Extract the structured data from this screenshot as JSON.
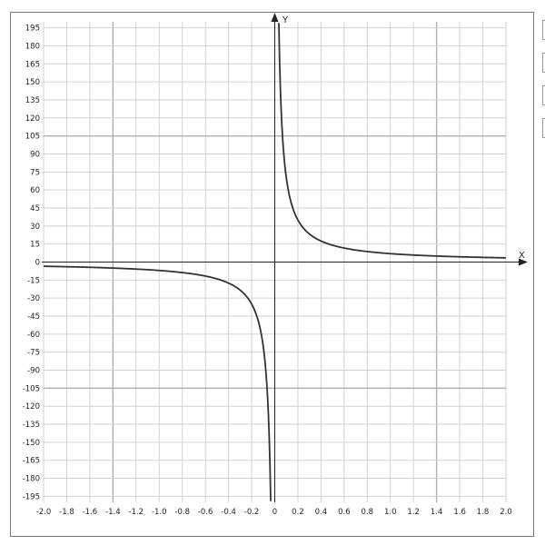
{
  "chart_data": {
    "type": "line",
    "title": "",
    "xlabel": "X",
    "ylabel": "Y",
    "xlim": [
      -2.0,
      2.0
    ],
    "ylim": [
      -200,
      200
    ],
    "x_ticks": [
      "-2.0",
      "-1.8",
      "-1.6",
      "-1.4",
      "-1.2",
      "-1.0",
      "-0.8",
      "-0.6",
      "-0.4",
      "-0.2",
      "0",
      "0.2",
      "0.4",
      "0.6",
      "0.8",
      "1.0",
      "1.2",
      "1.4",
      "1.6",
      "1.8",
      "2.0"
    ],
    "y_ticks": [
      "195",
      "180",
      "165",
      "150",
      "135",
      "120",
      "105",
      "90",
      "75",
      "60",
      "45",
      "30",
      "15",
      "0",
      "-15",
      "-30",
      "-45",
      "-60",
      "-75",
      "-90",
      "-105",
      "-120",
      "-135",
      "-150",
      "-165",
      "-180",
      "-195"
    ],
    "grid": true,
    "series": [
      {
        "function": "y = 7/x",
        "x": [
          -2.0,
          -1.6,
          -1.2,
          -0.8,
          -0.6,
          -0.4,
          -0.3,
          -0.2,
          -0.1,
          -0.06,
          -0.04,
          0.04,
          0.06,
          0.1,
          0.2,
          0.3,
          0.4,
          0.6,
          0.8,
          1.2,
          1.6,
          2.0
        ],
        "y": [
          -3.5,
          -4.38,
          -5.83,
          -8.75,
          -11.67,
          -17.5,
          -23.33,
          -35,
          -70,
          -116.7,
          -175,
          175,
          116.7,
          70,
          35,
          23.33,
          17.5,
          11.67,
          8.75,
          5.83,
          4.38,
          3.5
        ]
      }
    ],
    "colors": {
      "curve": "#333333",
      "grid": "#d2d2d2",
      "grid_major": "#b0b0b0",
      "axis": "#222222"
    }
  }
}
